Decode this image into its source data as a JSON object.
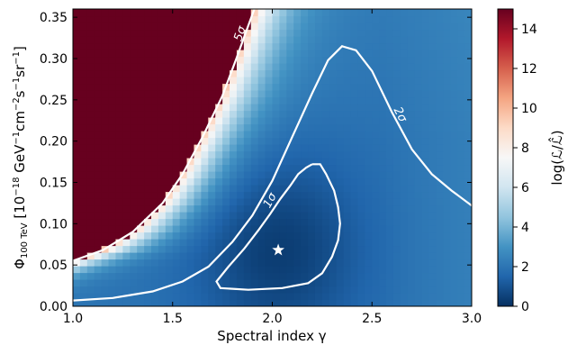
{
  "chart_data": {
    "type": "heatmap",
    "xlabel": "Spectral index γ",
    "ylabel": "Φ100 TeV [10⁻¹⁸ GeV⁻¹cm⁻²s⁻¹sr⁻¹]",
    "ylabel_parts": {
      "symbol": "Φ",
      "subscript": "100 TeV",
      "bracket_open": " [10",
      "exp1": "−18",
      "unit1": " GeV",
      "exp2": "−1",
      "unit2": "cm",
      "exp3": "−2",
      "unit3": "s",
      "exp4": "−1",
      "unit4": "sr",
      "exp5": "−1",
      "bracket_close": "]"
    },
    "xlim": [
      1.0,
      3.0
    ],
    "ylim": [
      0.0,
      0.36
    ],
    "x_ticks": [
      "1.0",
      "1.5",
      "2.0",
      "2.5",
      "3.0"
    ],
    "y_ticks": [
      "0.00",
      "0.05",
      "0.10",
      "0.15",
      "0.20",
      "0.25",
      "0.30",
      "0.35"
    ],
    "colorbar": {
      "label": "log(ℒ/ℒ̂)",
      "range": [
        0,
        15
      ],
      "ticks": [
        "0",
        "2",
        "4",
        "6",
        "8",
        "10",
        "12",
        "14"
      ],
      "colormap": "RdBu_r"
    },
    "best_fit": {
      "x": 2.03,
      "y": 0.068,
      "marker": "star"
    },
    "contours": [
      {
        "label": "1σ",
        "points": [
          [
            2.2,
            0.172
          ],
          [
            2.24,
            0.172
          ],
          [
            2.27,
            0.16
          ],
          [
            2.31,
            0.14
          ],
          [
            2.33,
            0.12
          ],
          [
            2.34,
            0.1
          ],
          [
            2.33,
            0.08
          ],
          [
            2.3,
            0.06
          ],
          [
            2.25,
            0.04
          ],
          [
            2.18,
            0.028
          ],
          [
            2.05,
            0.022
          ],
          [
            1.88,
            0.02
          ],
          [
            1.74,
            0.022
          ],
          [
            1.72,
            0.03
          ],
          [
            1.78,
            0.048
          ],
          [
            1.86,
            0.07
          ],
          [
            1.93,
            0.092
          ],
          [
            1.99,
            0.112
          ],
          [
            2.04,
            0.13
          ],
          [
            2.09,
            0.146
          ],
          [
            2.13,
            0.16
          ],
          [
            2.17,
            0.168
          ],
          [
            2.2,
            0.172
          ]
        ]
      },
      {
        "label": "2σ",
        "points": [
          [
            1.0,
            0.007
          ],
          [
            1.2,
            0.01
          ],
          [
            1.4,
            0.018
          ],
          [
            1.55,
            0.03
          ],
          [
            1.68,
            0.048
          ],
          [
            1.8,
            0.078
          ],
          [
            1.9,
            0.11
          ],
          [
            2.0,
            0.152
          ],
          [
            2.1,
            0.205
          ],
          [
            2.2,
            0.258
          ],
          [
            2.28,
            0.298
          ],
          [
            2.35,
            0.315
          ],
          [
            2.42,
            0.31
          ],
          [
            2.5,
            0.285
          ],
          [
            2.6,
            0.235
          ],
          [
            2.7,
            0.19
          ],
          [
            2.8,
            0.16
          ],
          [
            2.9,
            0.14
          ],
          [
            3.0,
            0.122
          ]
        ]
      },
      {
        "label": "5σ",
        "points": [
          [
            1.0,
            0.055
          ],
          [
            1.15,
            0.068
          ],
          [
            1.3,
            0.09
          ],
          [
            1.45,
            0.125
          ],
          [
            1.55,
            0.16
          ],
          [
            1.65,
            0.205
          ],
          [
            1.75,
            0.255
          ],
          [
            1.82,
            0.3
          ],
          [
            1.88,
            0.34
          ],
          [
            1.91,
            0.36
          ]
        ]
      }
    ],
    "colors": {
      "saturated": "#67001f",
      "low": "#053061",
      "contour": "#ffffff"
    }
  }
}
